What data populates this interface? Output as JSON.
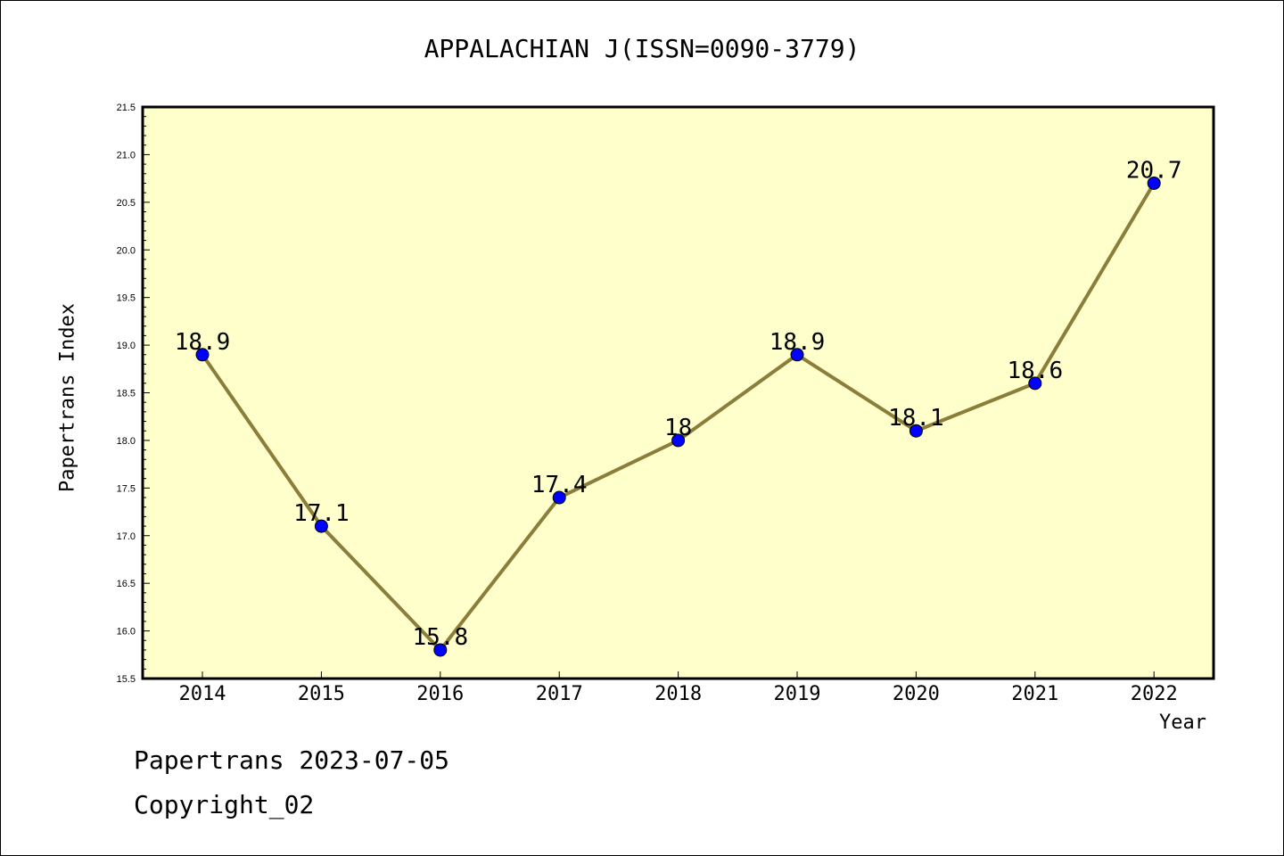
{
  "chart_data": {
    "type": "line",
    "title": "APPALACHIAN J(ISSN=0090-3779)",
    "xlabel": "Year",
    "ylabel": "Papertrans Index",
    "categories": [
      "2014",
      "2015",
      "2016",
      "2017",
      "2018",
      "2019",
      "2020",
      "2021",
      "2022"
    ],
    "series": [
      {
        "values": [
          18.9,
          17.1,
          15.8,
          17.4,
          18,
          18.9,
          18.1,
          18.6,
          20.7
        ]
      }
    ],
    "data_labels": [
      "18.9",
      "17.1",
      "15.8",
      "17.4",
      "18",
      "18.9",
      "18.1",
      "18.6",
      "20.7"
    ],
    "ylim": [
      15.5,
      21.5
    ],
    "yticks": [
      "15.5",
      "16.0",
      "16.5",
      "17.0",
      "17.5",
      "18.0",
      "18.5",
      "19.0",
      "19.5",
      "20.0",
      "20.5",
      "21.0",
      "21.5"
    ],
    "grid": false,
    "colors": {
      "plot_background": "#ffffcc",
      "line": "#8b7d3a",
      "marker": "#0000ff"
    }
  },
  "footer": {
    "line1": "Papertrans 2023-07-05",
    "line2": "Copyright_02"
  }
}
